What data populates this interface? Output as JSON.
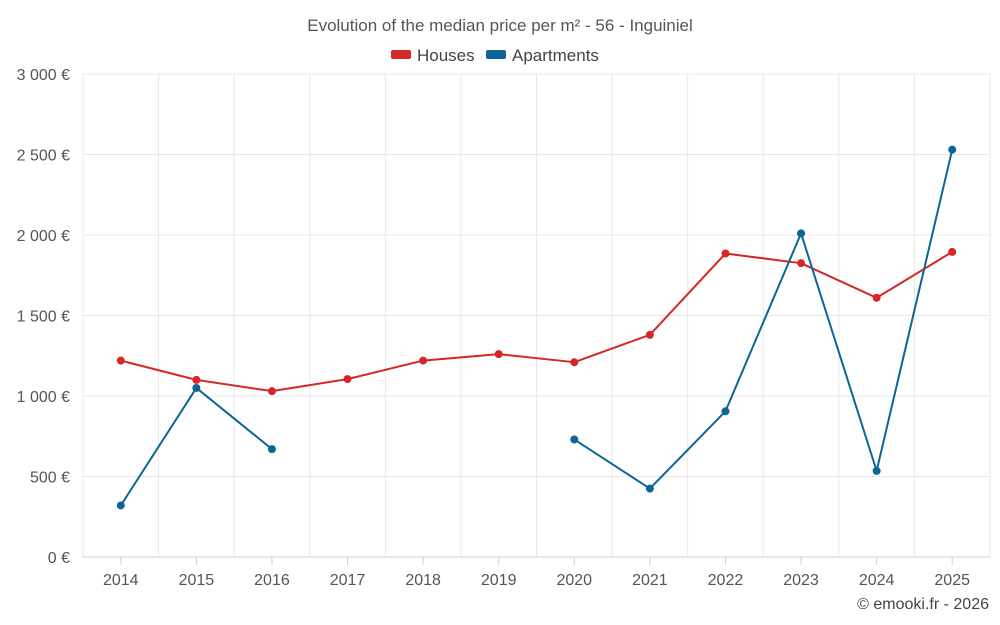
{
  "chart_data": {
    "type": "line",
    "title": "Evolution of the median price per m² - 56 - Inguiniel",
    "categories": [
      "2014",
      "2015",
      "2016",
      "2017",
      "2018",
      "2019",
      "2020",
      "2021",
      "2022",
      "2023",
      "2024",
      "2025"
    ],
    "series": [
      {
        "name": "Houses",
        "color": "#d62728",
        "values": [
          1220,
          1100,
          1030,
          1105,
          1220,
          1260,
          1210,
          1380,
          1885,
          1825,
          1610,
          1895
        ]
      },
      {
        "name": "Apartments",
        "color": "#0d6496",
        "values": [
          320,
          1050,
          670,
          null,
          null,
          null,
          730,
          425,
          905,
          2010,
          535,
          2530
        ]
      }
    ],
    "ylim": [
      0,
      3000
    ],
    "yticks": [
      0,
      500,
      1000,
      1500,
      2000,
      2500,
      3000
    ],
    "ytick_labels": [
      "0 €",
      "500 €",
      "1 000 €",
      "1 500 €",
      "2 000 €",
      "2 500 €",
      "3 000 €"
    ],
    "legend_position": "top-center",
    "grid": true
  },
  "footer": {
    "credit": "© emooki.fr - 2026"
  }
}
